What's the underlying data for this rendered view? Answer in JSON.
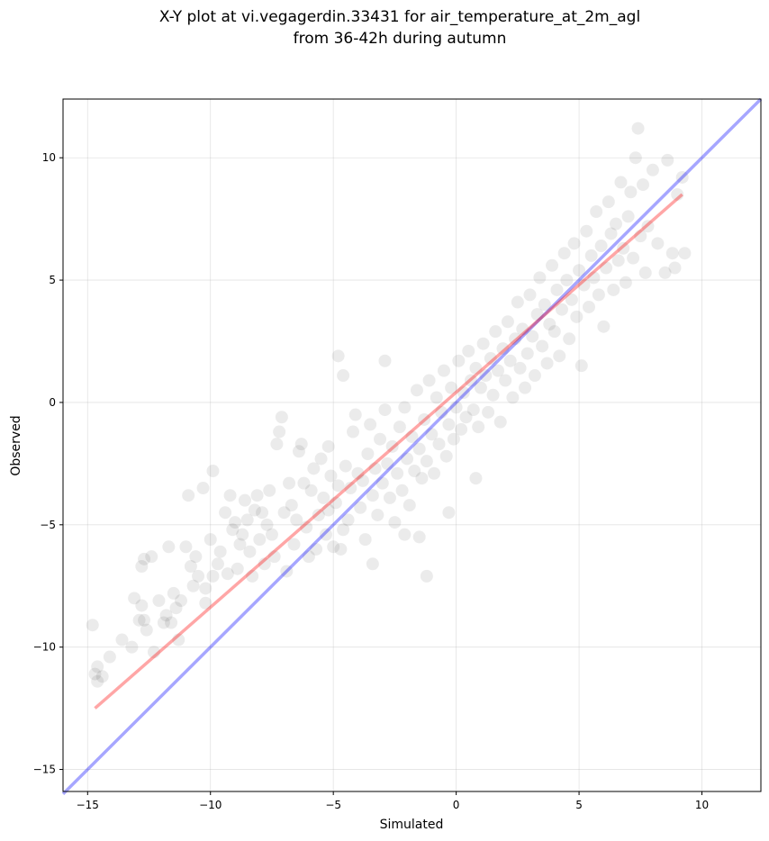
{
  "chart_data": {
    "type": "scatter",
    "title": "X-Y plot at vi.vegagerdin.33431 for air_temperature_at_2m_agl",
    "subtitle": "from 36-42h during autumn",
    "xlabel": "Simulated",
    "ylabel": "Observed",
    "xlim": [
      -16.0,
      12.4
    ],
    "ylim": [
      -15.9,
      12.4
    ],
    "xticks": [
      -15,
      -10,
      -5,
      0,
      5,
      10
    ],
    "yticks": [
      -15,
      -10,
      -5,
      0,
      5,
      10
    ],
    "xtick_labels": [
      "−15",
      "−10",
      "−5",
      "0",
      "5",
      "10"
    ],
    "ytick_labels": [
      "−15",
      "−10",
      "−5",
      "0",
      "5",
      "10"
    ],
    "grid": true,
    "marker_color": "#000000",
    "marker_alpha": 0.08,
    "identity_line_color": "#0000ff",
    "regression_line_color": "#ff0000",
    "regression_line": {
      "x": [
        -14.7,
        9.2
      ],
      "y": [
        -12.5,
        8.5
      ]
    },
    "identity_line": {
      "x": [
        -16.0,
        12.4
      ],
      "y": [
        -16.0,
        12.4
      ]
    },
    "points": [
      [
        -14.8,
        -9.1
      ],
      [
        -14.7,
        -11.1
      ],
      [
        -14.6,
        -11.4
      ],
      [
        -14.6,
        -10.8
      ],
      [
        -14.4,
        -11.2
      ],
      [
        -14.1,
        -10.4
      ],
      [
        -13.6,
        -9.7
      ],
      [
        -13.2,
        -10.0
      ],
      [
        -13.1,
        -8.0
      ],
      [
        -12.9,
        -8.9
      ],
      [
        -12.8,
        -6.7
      ],
      [
        -12.8,
        -8.3
      ],
      [
        -12.7,
        -6.4
      ],
      [
        -12.7,
        -8.9
      ],
      [
        -12.6,
        -9.3
      ],
      [
        -12.4,
        -6.3
      ],
      [
        -12.3,
        -10.2
      ],
      [
        -12.1,
        -8.1
      ],
      [
        -11.9,
        -9.0
      ],
      [
        -11.8,
        -8.7
      ],
      [
        -11.7,
        -5.9
      ],
      [
        -11.6,
        -9.0
      ],
      [
        -11.5,
        -7.8
      ],
      [
        -11.4,
        -8.4
      ],
      [
        -11.3,
        -9.7
      ],
      [
        -11.2,
        -8.1
      ],
      [
        -11.0,
        -5.9
      ],
      [
        -10.9,
        -3.8
      ],
      [
        -10.8,
        -6.7
      ],
      [
        -10.7,
        -7.5
      ],
      [
        -10.6,
        -6.3
      ],
      [
        -10.5,
        -7.1
      ],
      [
        -10.3,
        -3.5
      ],
      [
        -10.2,
        -8.2
      ],
      [
        -10.2,
        -7.6
      ],
      [
        -10.0,
        -5.6
      ],
      [
        -9.9,
        -2.8
      ],
      [
        -9.9,
        -7.1
      ],
      [
        -9.7,
        -6.6
      ],
      [
        -9.6,
        -6.1
      ],
      [
        -9.4,
        -4.5
      ],
      [
        -9.3,
        -7.0
      ],
      [
        -9.2,
        -3.8
      ],
      [
        -9.1,
        -5.2
      ],
      [
        -9.0,
        -4.9
      ],
      [
        -8.9,
        -6.8
      ],
      [
        -8.8,
        -5.8
      ],
      [
        -8.7,
        -5.4
      ],
      [
        -8.6,
        -4.0
      ],
      [
        -8.5,
        -4.8
      ],
      [
        -8.4,
        -6.1
      ],
      [
        -8.3,
        -7.1
      ],
      [
        -8.2,
        -4.4
      ],
      [
        -8.1,
        -3.8
      ],
      [
        -8.0,
        -5.6
      ],
      [
        -7.9,
        -4.5
      ],
      [
        -7.8,
        -6.6
      ],
      [
        -7.7,
        -5.0
      ],
      [
        -7.6,
        -3.6
      ],
      [
        -7.5,
        -5.4
      ],
      [
        -7.4,
        -6.3
      ],
      [
        -7.3,
        -1.7
      ],
      [
        -7.2,
        -1.2
      ],
      [
        -7.1,
        -0.6
      ],
      [
        -7.0,
        -4.5
      ],
      [
        -6.9,
        -6.9
      ],
      [
        -6.8,
        -3.3
      ],
      [
        -6.7,
        -4.2
      ],
      [
        -6.6,
        -5.8
      ],
      [
        -6.5,
        -4.8
      ],
      [
        -6.4,
        -2.0
      ],
      [
        -6.3,
        -1.7
      ],
      [
        -6.2,
        -3.3
      ],
      [
        -6.1,
        -5.1
      ],
      [
        -6.0,
        -6.3
      ],
      [
        -5.9,
        -3.6
      ],
      [
        -5.8,
        -2.7
      ],
      [
        -5.7,
        -6.0
      ],
      [
        -5.6,
        -4.6
      ],
      [
        -5.5,
        -2.3
      ],
      [
        -5.4,
        -3.9
      ],
      [
        -5.3,
        -5.4
      ],
      [
        -5.2,
        -4.4
      ],
      [
        -5.2,
        -1.8
      ],
      [
        -5.1,
        -3.0
      ],
      [
        -5.0,
        -5.9
      ],
      [
        -4.9,
        -4.1
      ],
      [
        -4.8,
        -3.4
      ],
      [
        -4.7,
        -6.0
      ],
      [
        -4.6,
        -5.2
      ],
      [
        -4.5,
        -2.6
      ],
      [
        -4.4,
        -4.8
      ],
      [
        -4.3,
        -3.5
      ],
      [
        -4.2,
        -1.2
      ],
      [
        -4.1,
        -0.5
      ],
      [
        -4.0,
        -2.9
      ],
      [
        -3.9,
        -4.3
      ],
      [
        -3.8,
        -3.2
      ],
      [
        -3.7,
        -5.6
      ],
      [
        -3.6,
        -2.1
      ],
      [
        -3.5,
        -0.9
      ],
      [
        -3.4,
        -3.8
      ],
      [
        -3.3,
        -2.7
      ],
      [
        -3.2,
        -4.6
      ],
      [
        -3.1,
        -1.5
      ],
      [
        -3.0,
        -3.3
      ],
      [
        -2.9,
        -0.3
      ],
      [
        -2.8,
        -2.5
      ],
      [
        -2.7,
        -3.9
      ],
      [
        -2.6,
        -1.8
      ],
      [
        -2.5,
        -4.9
      ],
      [
        -2.4,
        -2.9
      ],
      [
        -2.3,
        -1.0
      ],
      [
        -2.2,
        -3.6
      ],
      [
        -2.1,
        -0.2
      ],
      [
        -2.0,
        -2.3
      ],
      [
        -1.9,
        -4.2
      ],
      [
        -1.8,
        -1.4
      ],
      [
        -1.7,
        -2.8
      ],
      [
        -1.6,
        0.5
      ],
      [
        -1.5,
        -1.9
      ],
      [
        -1.4,
        -3.1
      ],
      [
        -1.3,
        -0.7
      ],
      [
        -1.2,
        -2.4
      ],
      [
        -1.1,
        0.9
      ],
      [
        -1.0,
        -1.3
      ],
      [
        -0.9,
        -2.9
      ],
      [
        -0.8,
        0.2
      ],
      [
        -0.7,
        -1.7
      ],
      [
        -0.6,
        -0.4
      ],
      [
        -0.5,
        1.3
      ],
      [
        -0.4,
        -2.2
      ],
      [
        -0.3,
        -0.9
      ],
      [
        -0.2,
        0.6
      ],
      [
        -0.1,
        -1.5
      ],
      [
        0.0,
        -0.2
      ],
      [
        0.1,
        1.7
      ],
      [
        0.2,
        -1.1
      ],
      [
        0.3,
        0.4
      ],
      [
        0.4,
        -0.6
      ],
      [
        0.5,
        2.1
      ],
      [
        0.6,
        0.9
      ],
      [
        0.7,
        -0.3
      ],
      [
        0.8,
        1.4
      ],
      [
        0.9,
        -1.0
      ],
      [
        1.0,
        0.6
      ],
      [
        1.1,
        2.4
      ],
      [
        1.2,
        1.1
      ],
      [
        1.3,
        -0.4
      ],
      [
        1.4,
        1.8
      ],
      [
        1.5,
        0.3
      ],
      [
        1.6,
        2.9
      ],
      [
        1.7,
        1.3
      ],
      [
        1.8,
        -0.8
      ],
      [
        1.9,
        2.2
      ],
      [
        2.0,
        0.9
      ],
      [
        2.1,
        3.3
      ],
      [
        2.2,
        1.7
      ],
      [
        2.3,
        0.2
      ],
      [
        2.4,
        2.6
      ],
      [
        2.5,
        4.1
      ],
      [
        2.6,
        1.4
      ],
      [
        2.7,
        3.0
      ],
      [
        2.8,
        0.6
      ],
      [
        2.9,
        2.0
      ],
      [
        3.0,
        4.4
      ],
      [
        3.1,
        2.7
      ],
      [
        3.2,
        1.1
      ],
      [
        3.3,
        3.6
      ],
      [
        3.4,
        5.1
      ],
      [
        3.5,
        2.3
      ],
      [
        3.6,
        4.0
      ],
      [
        3.7,
        1.6
      ],
      [
        3.8,
        3.2
      ],
      [
        3.9,
        5.6
      ],
      [
        4.0,
        2.9
      ],
      [
        4.1,
        4.6
      ],
      [
        4.2,
        1.9
      ],
      [
        4.3,
        3.8
      ],
      [
        4.4,
        6.1
      ],
      [
        4.5,
        5.0
      ],
      [
        4.6,
        2.6
      ],
      [
        4.7,
        4.2
      ],
      [
        4.8,
        6.5
      ],
      [
        4.9,
        3.5
      ],
      [
        5.0,
        5.4
      ],
      [
        5.1,
        1.5
      ],
      [
        5.2,
        4.8
      ],
      [
        5.3,
        7.0
      ],
      [
        5.4,
        3.9
      ],
      [
        5.5,
        6.0
      ],
      [
        5.6,
        5.1
      ],
      [
        5.7,
        7.8
      ],
      [
        5.8,
        4.4
      ],
      [
        5.9,
        6.4
      ],
      [
        6.0,
        3.1
      ],
      [
        6.1,
        5.5
      ],
      [
        6.2,
        8.2
      ],
      [
        6.3,
        6.9
      ],
      [
        6.4,
        4.6
      ],
      [
        6.5,
        7.3
      ],
      [
        6.6,
        5.8
      ],
      [
        6.7,
        9.0
      ],
      [
        6.8,
        6.3
      ],
      [
        6.9,
        4.9
      ],
      [
        7.0,
        7.6
      ],
      [
        7.1,
        8.6
      ],
      [
        7.2,
        5.9
      ],
      [
        7.3,
        10.0
      ],
      [
        7.4,
        11.2
      ],
      [
        7.5,
        6.8
      ],
      [
        7.6,
        8.9
      ],
      [
        7.7,
        5.3
      ],
      [
        7.8,
        7.2
      ],
      [
        8.0,
        9.5
      ],
      [
        8.2,
        6.5
      ],
      [
        8.5,
        5.3
      ],
      [
        8.6,
        9.9
      ],
      [
        8.8,
        6.1
      ],
      [
        8.9,
        5.5
      ],
      [
        9.0,
        8.5
      ],
      [
        9.2,
        9.2
      ],
      [
        9.3,
        6.1
      ],
      [
        -4.6,
        1.1
      ],
      [
        -4.8,
        1.9
      ],
      [
        -2.9,
        1.7
      ],
      [
        -1.2,
        -7.1
      ],
      [
        -1.5,
        -5.5
      ],
      [
        -2.1,
        -5.4
      ],
      [
        -3.4,
        -6.6
      ],
      [
        -0.3,
        -4.5
      ],
      [
        0.8,
        -3.1
      ]
    ]
  }
}
